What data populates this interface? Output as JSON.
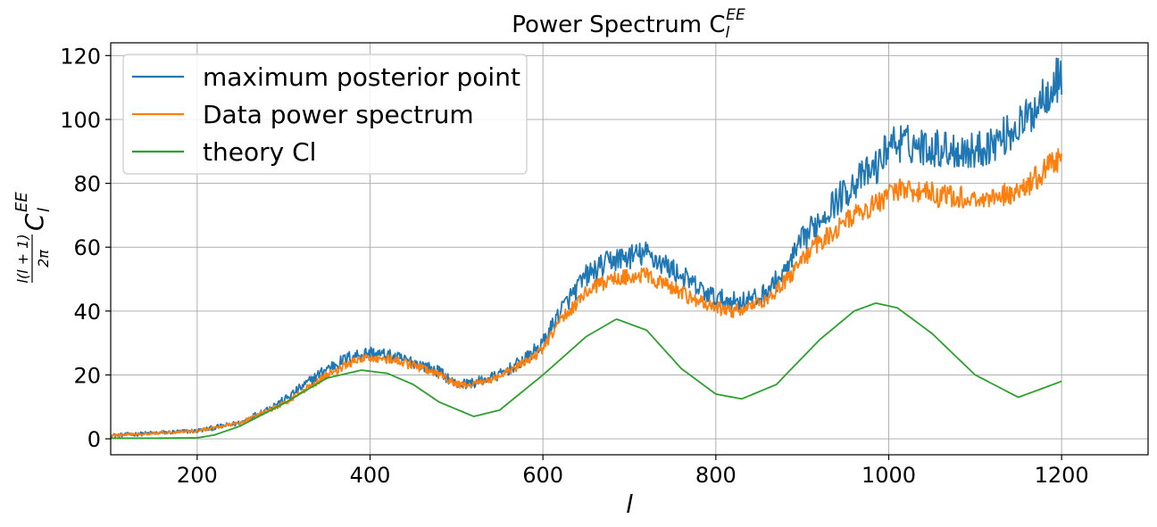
{
  "chart_data": {
    "type": "line",
    "title": "Power Spectrum C_l^{EE}",
    "title_parts": {
      "base": "Power Spectrum C",
      "sub": "l",
      "sup": "EE"
    },
    "xlabel": "l",
    "ylabel": "l(l+1)/2π C_l^{EE}",
    "ylabel_parts": {
      "numerator": "l(l + 1)",
      "denominator": "2π",
      "symbol": "C",
      "sub": "l",
      "sup": "EE"
    },
    "xlim": [
      100,
      1300
    ],
    "ylim": [
      -5,
      124
    ],
    "xticks": [
      200,
      400,
      600,
      800,
      1000,
      1200
    ],
    "yticks": [
      0,
      20,
      40,
      60,
      80,
      100,
      120
    ],
    "grid": true,
    "legend_position": "top-left",
    "series": [
      {
        "name": "maximum posterior point",
        "color": "#1f77b4",
        "noise": 1.8,
        "x": [
          100,
          150,
          200,
          250,
          300,
          350,
          380,
          400,
          420,
          450,
          480,
          500,
          520,
          550,
          580,
          600,
          620,
          650,
          680,
          700,
          720,
          750,
          780,
          800,
          820,
          850,
          880,
          900,
          930,
          960,
          990,
          1000,
          1030,
          1060,
          1100,
          1130,
          1160,
          1180,
          1200
        ],
        "y": [
          1.0,
          1.8,
          2.5,
          5.0,
          12.0,
          22.0,
          26.0,
          27.0,
          26.0,
          24.0,
          21.0,
          17.0,
          17.5,
          20.0,
          25.0,
          30.0,
          40.0,
          51.0,
          56.0,
          57.0,
          58.0,
          53.0,
          47.0,
          44.0,
          43.0,
          44.0,
          52.0,
          62.0,
          72.0,
          80.0,
          86.0,
          93.0,
          92.0,
          91.0,
          90.0,
          94.0,
          100.0,
          108.0,
          114.0
        ]
      },
      {
        "name": "Data power spectrum",
        "color": "#ff7f0e",
        "noise": 1.3,
        "x": [
          100,
          150,
          200,
          250,
          300,
          350,
          380,
          400,
          420,
          450,
          480,
          500,
          520,
          550,
          580,
          600,
          620,
          650,
          680,
          700,
          720,
          750,
          780,
          800,
          820,
          850,
          880,
          900,
          930,
          960,
          990,
          1000,
          1030,
          1060,
          1100,
          1130,
          1160,
          1180,
          1200
        ],
        "y": [
          1.0,
          1.8,
          2.5,
          5.0,
          11.0,
          20.0,
          24.0,
          25.5,
          25.0,
          23.0,
          20.0,
          17.0,
          17.0,
          19.5,
          24.0,
          28.0,
          37.0,
          46.0,
          50.0,
          51.0,
          51.0,
          47.0,
          43.0,
          41.0,
          40.0,
          42.0,
          49.0,
          56.0,
          64.0,
          70.0,
          74.0,
          78.0,
          78.0,
          76.0,
          75.0,
          76.0,
          79.0,
          84.0,
          89.0
        ]
      },
      {
        "name": "theory Cl",
        "color": "#2ca02c",
        "noise": 0,
        "x": [
          100,
          150,
          200,
          220,
          250,
          300,
          350,
          390,
          420,
          450,
          480,
          520,
          550,
          600,
          650,
          685,
          720,
          760,
          800,
          830,
          870,
          920,
          960,
          985,
          1010,
          1050,
          1100,
          1150,
          1200
        ],
        "y": [
          0.2,
          0.2,
          0.3,
          1.2,
          4.0,
          11.0,
          19.0,
          21.5,
          20.5,
          17.0,
          11.5,
          7.0,
          9.0,
          20.0,
          32.0,
          37.5,
          34.0,
          22.0,
          14.0,
          12.5,
          17.0,
          31.0,
          40.0,
          42.5,
          41.0,
          33.0,
          20.0,
          13.0,
          18.0
        ]
      }
    ]
  }
}
